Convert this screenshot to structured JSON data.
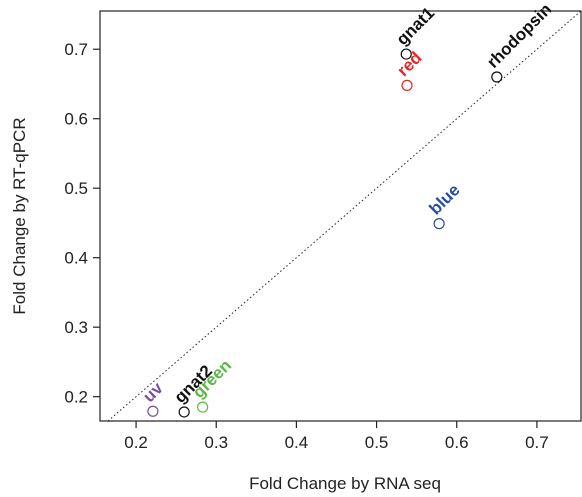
{
  "chart_data": {
    "type": "scatter",
    "title": "",
    "xlabel": "Fold Change by RNA seq",
    "ylabel": "Fold Change by RT-qPCR",
    "xlim": [
      0.155,
      0.755
    ],
    "ylim": [
      0.165,
      0.755
    ],
    "x_ticks": [
      0.2,
      0.3,
      0.4,
      0.5,
      0.6,
      0.7
    ],
    "y_ticks": [
      0.2,
      0.3,
      0.4,
      0.5,
      0.6,
      0.7
    ],
    "x_tick_labels": [
      "0.2",
      "0.3",
      "0.4",
      "0.5",
      "0.6",
      "0.7"
    ],
    "y_tick_labels": [
      "0.2",
      "0.3",
      "0.4",
      "0.5",
      "0.6",
      "0.7"
    ],
    "grid": false,
    "legend": "none",
    "reference_line": "y = x (dotted)",
    "points": [
      {
        "label": "gnat1",
        "x": 0.537,
        "y": 0.693,
        "color": "#111111"
      },
      {
        "label": "red",
        "x": 0.538,
        "y": 0.648,
        "color": "#e8262a"
      },
      {
        "label": "rhodopsin",
        "x": 0.65,
        "y": 0.66,
        "color": "#111111"
      },
      {
        "label": "blue",
        "x": 0.578,
        "y": 0.449,
        "color": "#2a4da0"
      },
      {
        "label": "uv",
        "x": 0.221,
        "y": 0.179,
        "color": "#7a4fa3"
      },
      {
        "label": "gnat2",
        "x": 0.26,
        "y": 0.178,
        "color": "#111111"
      },
      {
        "label": "green",
        "x": 0.283,
        "y": 0.185,
        "color": "#5ab946"
      }
    ]
  }
}
